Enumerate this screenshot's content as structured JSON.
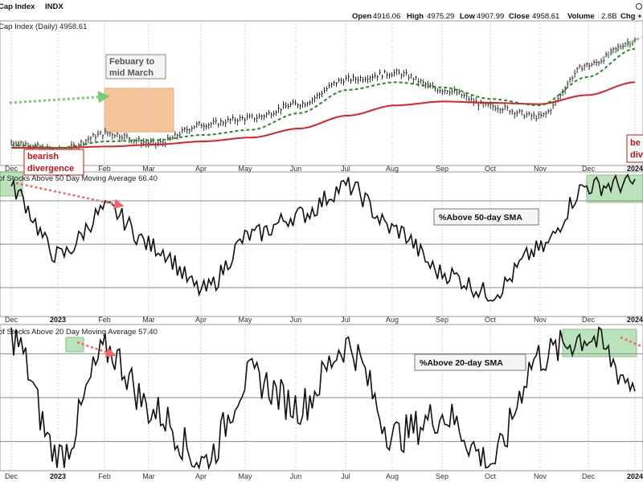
{
  "header": {
    "symbol_label": "Cap Index",
    "symbol": "INDX",
    "open_label": "Open",
    "open": "4916.06",
    "high_label": "High",
    "high": "4975.29",
    "low_label": "Low",
    "low": "4907.99",
    "close_label": "Close",
    "close": "4958.61",
    "volume_label": "Volume",
    "volume": "2.8B",
    "chg_label": "Chg +"
  },
  "colors": {
    "price": "#111111",
    "sma_long": "#dd2222",
    "sma_short": "#2a8a2a",
    "breadth": "#111111",
    "highlight_orange": "#f5b27a",
    "highlight_green": "#9fd89f",
    "arrow_green": "#77cc77",
    "arrow_red": "#ee6666",
    "label_red": "#cc1111"
  },
  "chart_data": [
    {
      "type": "line",
      "name": "price-panel",
      "title": "Cap Index (Daily) 4958.61",
      "x": [
        "Dec",
        "Jan",
        "Feb",
        "Mar",
        "Apr",
        "May",
        "Jun",
        "Jul",
        "Aug",
        "Sep",
        "Oct",
        "Nov",
        "Dec",
        "Jan"
      ],
      "tick_labels": [
        "Dec",
        "",
        "Feb",
        "Mar",
        "Apr",
        "May",
        "Jun",
        "Jul",
        "Aug",
        "Sep",
        "Oct",
        "Nov",
        "Dec",
        "2024"
      ],
      "series": [
        {
          "values": [
            3990,
            3930,
            4060,
            3980,
            4130,
            4180,
            4290,
            4480,
            4530,
            4400,
            4270,
            4190,
            4590,
            4780
          ]
        },
        {
          "values": [
            3970,
            3950,
            4000,
            4010,
            4050,
            4090,
            4220,
            4400,
            4460,
            4420,
            4330,
            4280,
            4500,
            4720
          ]
        },
        {
          "values": [
            3950,
            3950,
            3960,
            3975,
            4000,
            4030,
            4100,
            4200,
            4280,
            4310,
            4300,
            4290,
            4360,
            4460
          ]
        }
      ],
      "annotations": [
        {
          "text": "Febuary to mid March"
        },
        {
          "text": "bearish divergence"
        },
        {
          "text": "be div"
        }
      ]
    },
    {
      "type": "line",
      "name": "breadth-50",
      "title": "of Stocks Above 50 Day Moving Average 66.40",
      "label": "%Above 50-day SMA",
      "x": [
        "Dec",
        "Jan",
        "Feb",
        "Mar",
        "Apr",
        "May",
        "Jun",
        "Jul",
        "Aug",
        "Sep",
        "Oct",
        "Nov",
        "Dec",
        "Jan"
      ],
      "tick_labels": [
        "Dec",
        "2023",
        "Feb",
        "Mar",
        "Apr",
        "May",
        "Jun",
        "Jul",
        "Aug",
        "Sep",
        "Oct",
        "Nov",
        "Dec",
        "2024"
      ],
      "series": [
        {
          "values": [
            88,
            42,
            74,
            48,
            18,
            56,
            70,
            90,
            60,
            30,
            16,
            46,
            90,
            92
          ]
        }
      ],
      "ylim": [
        0,
        100
      ]
    },
    {
      "type": "line",
      "name": "breadth-20",
      "title": "of Stocks Above 20 Day Moving Average 57.40",
      "label": "%Above 20-day SMA",
      "x": [
        "Dec",
        "Jan",
        "Feb",
        "Mar",
        "Apr",
        "May",
        "Jun",
        "Jul",
        "Aug",
        "Sep",
        "Oct",
        "Nov",
        "Dec",
        "Jan"
      ],
      "tick_labels": [
        "Dec",
        "2023",
        "Feb",
        "Mar",
        "Apr",
        "May",
        "Jun",
        "Jul",
        "Aug",
        "Sep",
        "Oct",
        "Nov",
        "Dec",
        "2024"
      ],
      "series": [
        {
          "values": [
            92,
            10,
            82,
            40,
            6,
            64,
            44,
            86,
            24,
            38,
            6,
            78,
            92,
            60
          ]
        }
      ],
      "ylim": [
        0,
        100
      ]
    }
  ]
}
